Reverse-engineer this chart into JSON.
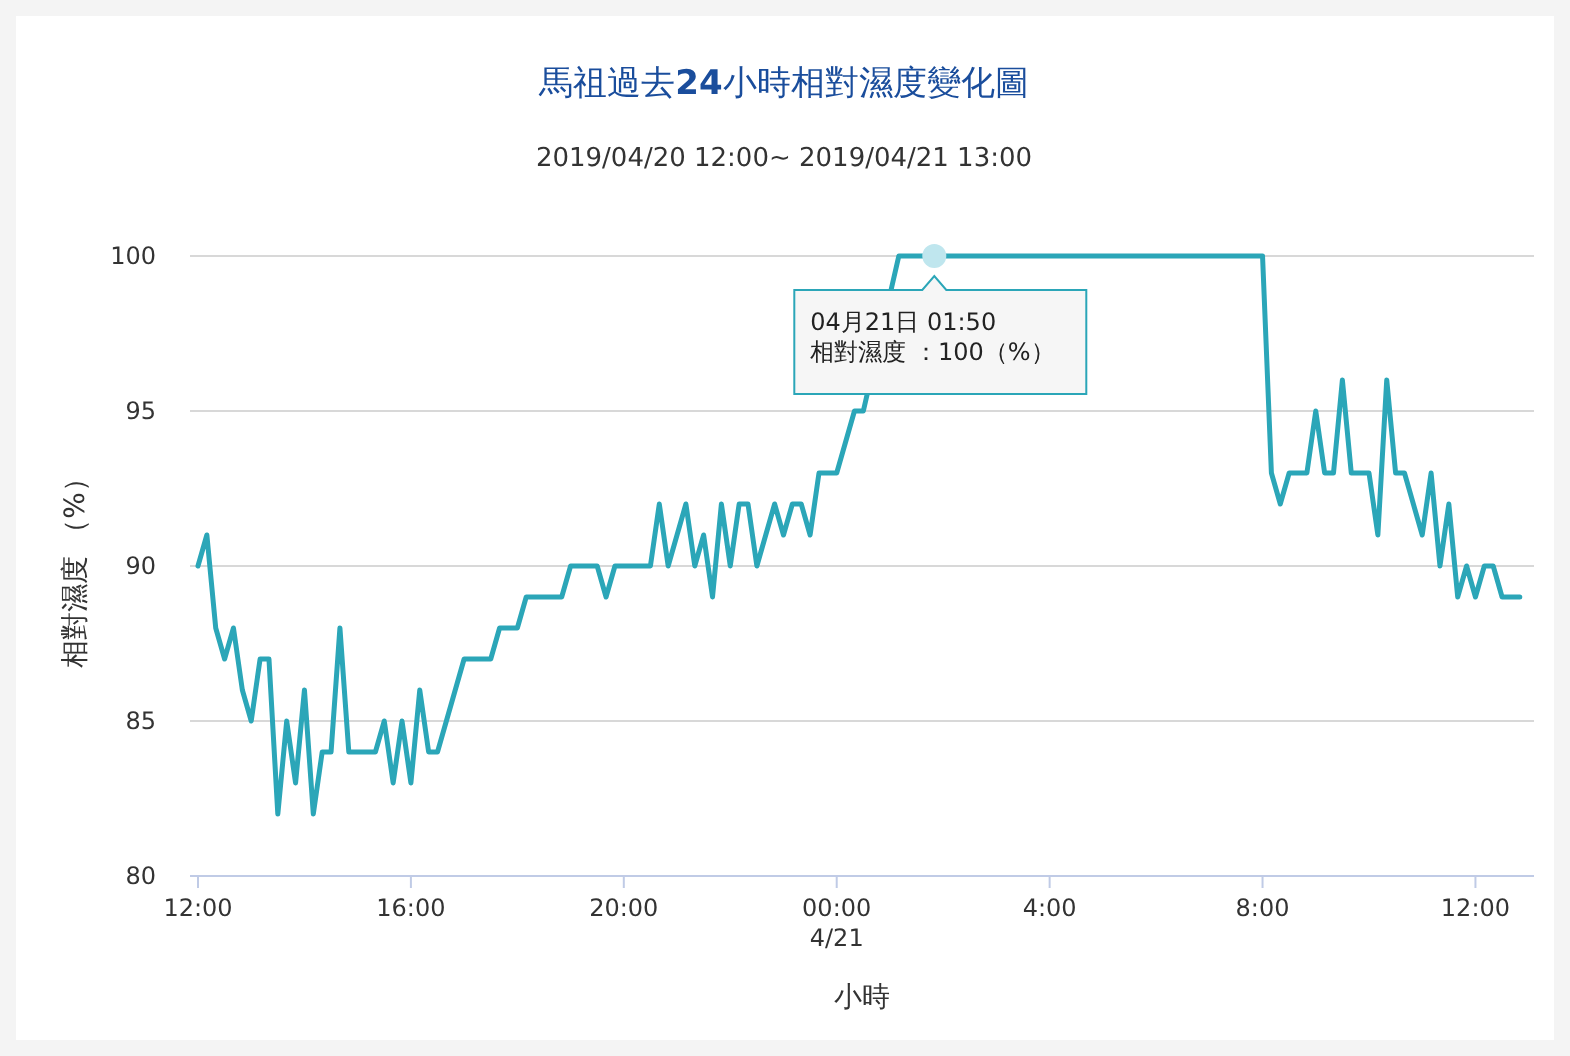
{
  "chart_data": {
    "type": "line",
    "title": "馬祖過去**24**小時相對濕度變化圖",
    "subtitle": "2019/04/20 12:00~ 2019/04/21 13:00",
    "xlabel": "小時",
    "ylabel": "相對濕度 （%）",
    "x": [
      "2019-04-20T12:00",
      "2019-04-20T12:10",
      "2019-04-20T12:20",
      "2019-04-20T12:30",
      "2019-04-20T12:40",
      "2019-04-20T12:50",
      "2019-04-20T13:00",
      "2019-04-20T13:10",
      "2019-04-20T13:20",
      "2019-04-20T13:30",
      "2019-04-20T13:40",
      "2019-04-20T13:50",
      "2019-04-20T14:00",
      "2019-04-20T14:10",
      "2019-04-20T14:20",
      "2019-04-20T14:30",
      "2019-04-20T14:40",
      "2019-04-20T14:50",
      "2019-04-20T15:20",
      "2019-04-20T15:30",
      "2019-04-20T15:40",
      "2019-04-20T15:50",
      "2019-04-20T16:00",
      "2019-04-20T16:10",
      "2019-04-20T16:20",
      "2019-04-20T16:30",
      "2019-04-20T17:00",
      "2019-04-20T17:30",
      "2019-04-20T17:40",
      "2019-04-20T18:00",
      "2019-04-20T18:10",
      "2019-04-20T18:50",
      "2019-04-20T19:00",
      "2019-04-20T19:30",
      "2019-04-20T19:40",
      "2019-04-20T19:50",
      "2019-04-20T20:30",
      "2019-04-20T20:40",
      "2019-04-20T20:50",
      "2019-04-20T21:10",
      "2019-04-20T21:20",
      "2019-04-20T21:30",
      "2019-04-20T21:40",
      "2019-04-20T21:50",
      "2019-04-20T22:00",
      "2019-04-20T22:10",
      "2019-04-20T22:20",
      "2019-04-20T22:30",
      "2019-04-20T22:40",
      "2019-04-20T22:50",
      "2019-04-20T23:00",
      "2019-04-20T23:10",
      "2019-04-20T23:20",
      "2019-04-20T23:30",
      "2019-04-20T23:40",
      "2019-04-20T23:50",
      "2019-04-21T00:00",
      "2019-04-21T00:20",
      "2019-04-21T00:30",
      "2019-04-21T01:10",
      "2019-04-21T08:00",
      "2019-04-21T08:10",
      "2019-04-21T08:20",
      "2019-04-21T08:30",
      "2019-04-21T08:50",
      "2019-04-21T09:00",
      "2019-04-21T09:10",
      "2019-04-21T09:20",
      "2019-04-21T09:30",
      "2019-04-21T09:40",
      "2019-04-21T10:00",
      "2019-04-21T10:10",
      "2019-04-21T10:20",
      "2019-04-21T10:30",
      "2019-04-21T10:40",
      "2019-04-21T11:00",
      "2019-04-21T11:10",
      "2019-04-21T11:20",
      "2019-04-21T11:30",
      "2019-04-21T11:40",
      "2019-04-21T11:50",
      "2019-04-21T12:00",
      "2019-04-21T12:10",
      "2019-04-21T12:20",
      "2019-04-21T12:30",
      "2019-04-21T12:50"
    ],
    "series": [
      {
        "color": "#2ba6b8",
        "values": [
          90,
          91,
          88,
          87,
          88,
          86,
          85,
          87,
          87,
          82,
          85,
          83,
          86,
          82,
          84,
          84,
          88,
          84,
          84,
          85,
          83,
          85,
          83,
          86,
          84,
          84,
          87,
          87,
          88,
          88,
          89,
          89,
          90,
          90,
          89,
          90,
          90,
          92,
          90,
          92,
          90,
          91,
          89,
          92,
          90,
          92,
          92,
          90,
          91,
          92,
          91,
          92,
          92,
          91,
          93,
          93,
          93,
          95,
          95,
          100,
          100,
          93,
          92,
          93,
          93,
          95,
          93,
          93,
          96,
          93,
          93,
          91,
          96,
          93,
          93,
          91,
          93,
          90,
          92,
          89,
          90,
          89,
          90,
          90,
          89,
          89
        ]
      }
    ],
    "xlim": [
      "2019-04-20T11:51",
      "2019-04-21T13:06"
    ],
    "xticks": [
      {
        "value": "2019-04-20T12:00",
        "label": "12:00"
      },
      {
        "value": "2019-04-20T16:00",
        "label": "16:00"
      },
      {
        "value": "2019-04-20T20:00",
        "label": "20:00"
      },
      {
        "value": "2019-04-21T00:00",
        "label": "00:00\n4/21"
      },
      {
        "value": "2019-04-21T04:00",
        "label": "4:00"
      },
      {
        "value": "2019-04-21T08:00",
        "label": "8:00"
      },
      {
        "value": "2019-04-21T12:00",
        "label": "12:00"
      }
    ],
    "ylim": [
      80,
      100
    ],
    "yticks": [
      80,
      85,
      90,
      95,
      100
    ],
    "grid": "y",
    "marker": "none",
    "line_style": "solid",
    "annotations": [
      {
        "text": "04月21日 01:50\n相對濕度 ：100（%）",
        "x": "2019-04-21T01:50",
        "y": 100
      }
    ]
  }
}
